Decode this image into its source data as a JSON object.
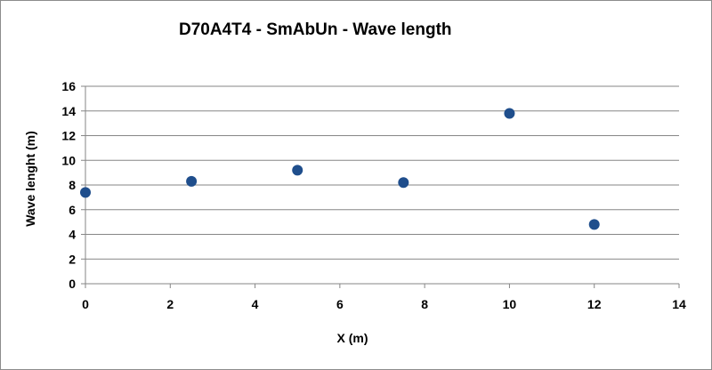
{
  "chart_data": {
    "type": "scatter",
    "title": "D70A4T4 - SmAbUn - Wave length",
    "xlabel": "X (m)",
    "ylabel": "Wave lenght (m)",
    "xlim": [
      0,
      14
    ],
    "ylim": [
      0,
      16
    ],
    "xticks": [
      0,
      2,
      4,
      6,
      8,
      10,
      12,
      14
    ],
    "yticks": [
      0,
      2,
      4,
      6,
      8,
      10,
      12,
      14,
      16
    ],
    "grid": "horizontal",
    "legend": "none",
    "marker_color": "#1f4e8c",
    "gridline_color": "#868686",
    "series": [
      {
        "x": [
          0,
          2.5,
          5,
          7.5,
          10,
          12
        ],
        "y": [
          7.4,
          8.3,
          9.2,
          8.2,
          13.8,
          4.8
        ]
      }
    ]
  }
}
